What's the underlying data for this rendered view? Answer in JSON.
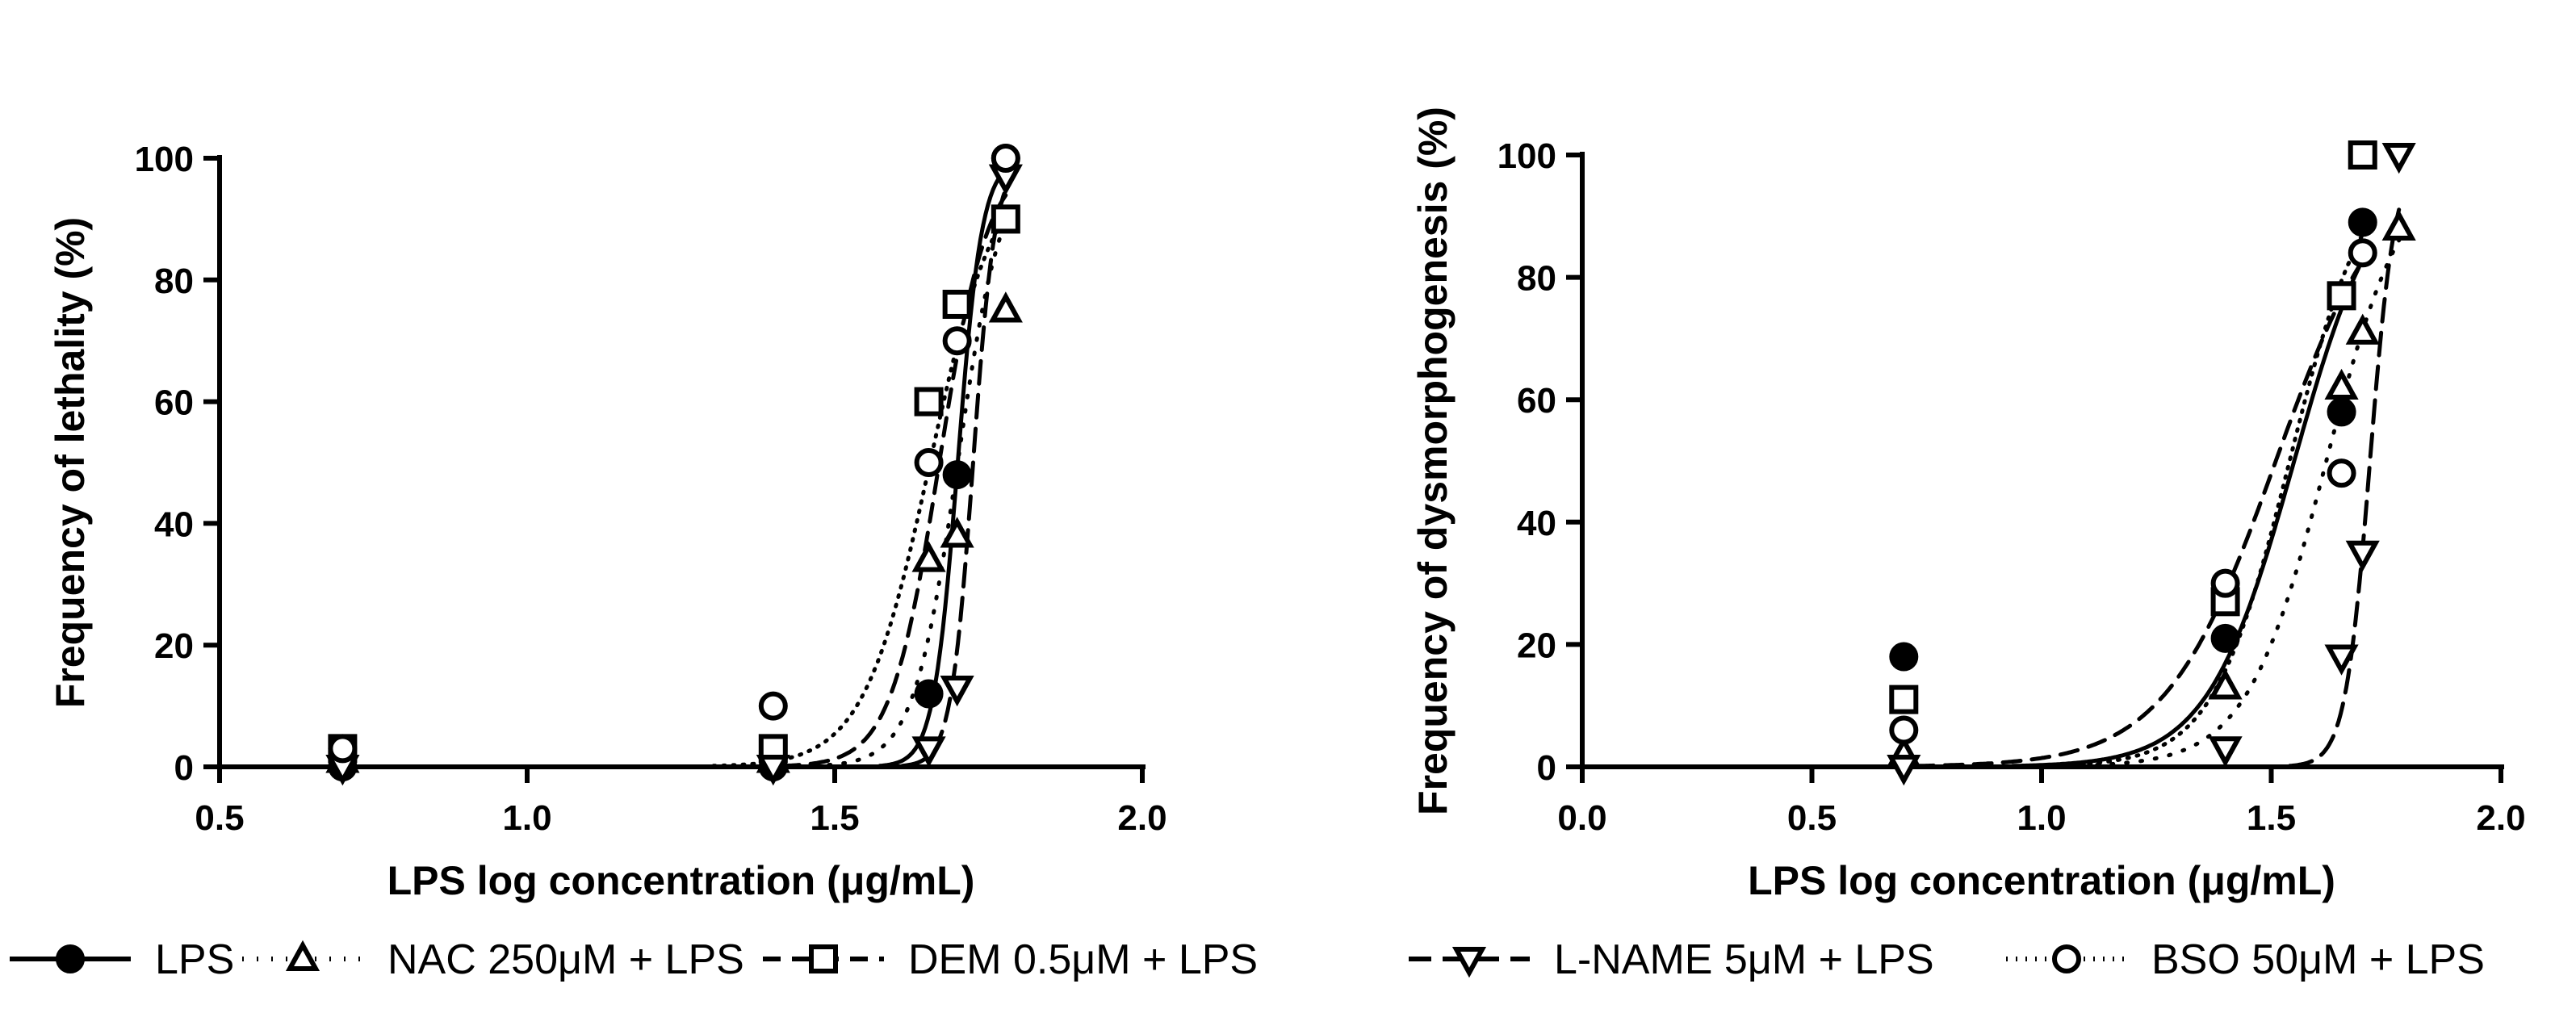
{
  "chart_data": [
    {
      "type": "scatter",
      "title": "",
      "xlabel": "LPS log concentration (μg/mL)",
      "ylabel": "Frequency of lethality (%)",
      "xlim": [
        0.5,
        2.0
      ],
      "ylim": [
        0,
        100
      ],
      "xticks": [
        "0.5",
        "1.0",
        "1.5",
        "2.0"
      ],
      "yticks": [
        "0",
        "20",
        "40",
        "60",
        "80",
        "100"
      ],
      "grid": false,
      "series": [
        {
          "name": "LPS",
          "marker": "filled-circle",
          "line": "solid",
          "x": [
            0.7,
            1.4,
            1.653,
            1.699,
            1.778
          ],
          "y": [
            0,
            0,
            12,
            48,
            100
          ],
          "fit": {
            "ec50": 1.7,
            "slope": 22
          }
        },
        {
          "name": "NAC 250μM + LPS",
          "marker": "triangle-up",
          "line": "dotted-sparse",
          "x": [
            0.7,
            1.4,
            1.653,
            1.699,
            1.778
          ],
          "y": [
            1,
            1,
            34,
            38,
            75
          ],
          "fit": {
            "ec50": 1.7,
            "slope": 12
          }
        },
        {
          "name": "DEM 0.5μM + LPS",
          "marker": "square",
          "line": "dashed",
          "x": [
            0.7,
            1.4,
            1.653,
            1.699,
            1.778
          ],
          "y": [
            3,
            3,
            60,
            76,
            90
          ],
          "fit": {
            "ec50": 1.67,
            "slope": 11
          }
        },
        {
          "name": "L-NAME 5μM + LPS",
          "marker": "triangle-down",
          "line": "dashed-long",
          "x": [
            0.7,
            1.4,
            1.653,
            1.699,
            1.778
          ],
          "y": [
            0,
            0,
            3,
            13,
            97
          ],
          "fit": {
            "ec50": 1.725,
            "slope": 24
          }
        },
        {
          "name": "BSO 50μM + LPS",
          "marker": "circle",
          "line": "dotted",
          "x": [
            0.7,
            1.4,
            1.653,
            1.699,
            1.778
          ],
          "y": [
            3,
            10,
            50,
            70,
            100
          ],
          "fit": {
            "ec50": 1.655,
            "slope": 8
          }
        }
      ]
    },
    {
      "type": "scatter",
      "title": "",
      "xlabel": "LPS log concentration (μg/mL)",
      "ylabel": "Frequency of dysmorphogenesis (%)",
      "xlim": [
        0.0,
        2.0
      ],
      "ylim": [
        0,
        100
      ],
      "xticks": [
        "0.0",
        "0.5",
        "1.0",
        "1.5",
        "2.0"
      ],
      "yticks": [
        "0",
        "20",
        "40",
        "60",
        "80",
        "100"
      ],
      "grid": false,
      "series": [
        {
          "name": "LPS",
          "marker": "filled-circle",
          "line": "solid",
          "x": [
            0.7,
            1.4,
            1.653,
            1.699
          ],
          "y": [
            18,
            21,
            58,
            89
          ],
          "fit": {
            "ec50": 1.55,
            "slope": 4.6
          }
        },
        {
          "name": "NAC 250μM + LPS",
          "marker": "triangle-up",
          "line": "dotted-sparse",
          "x": [
            0.7,
            1.4,
            1.653,
            1.699,
            1.778
          ],
          "y": [
            2,
            13,
            62,
            71,
            88
          ],
          "fit": {
            "ec50": 1.62,
            "slope": 5.0
          }
        },
        {
          "name": "DEM 0.5μM + LPS",
          "marker": "square",
          "line": "dashed",
          "x": [
            0.7,
            1.4,
            1.653,
            1.699
          ],
          "y": [
            11,
            27,
            77,
            100
          ],
          "fit": {
            "ec50": 1.51,
            "slope": 3.6
          }
        },
        {
          "name": "L-NAME 5μM + LPS",
          "marker": "triangle-down",
          "line": "dashed-long",
          "x": [
            0.7,
            1.4,
            1.653,
            1.699,
            1.778
          ],
          "y": [
            0,
            3,
            18,
            35,
            100
          ],
          "fit": {
            "ec50": 1.715,
            "slope": 16
          }
        },
        {
          "name": "BSO 50μM + LPS",
          "marker": "circle",
          "line": "dotted",
          "x": [
            0.7,
            1.4,
            1.653,
            1.699
          ],
          "y": [
            6,
            30,
            48,
            84
          ],
          "fit": {
            "ec50": 1.54,
            "slope": 5.2
          }
        }
      ]
    }
  ],
  "legend": [
    {
      "label": "LPS",
      "marker": "filled-circle",
      "line": "solid"
    },
    {
      "label": "NAC 250μM + LPS",
      "marker": "triangle-up",
      "line": "dotted-sparse"
    },
    {
      "label": "DEM 0.5μM + LPS",
      "marker": "square",
      "line": "dashed"
    },
    {
      "label": "L-NAME 5μM + LPS",
      "marker": "triangle-down",
      "line": "dashed-long"
    },
    {
      "label": "BSO 50μM + LPS",
      "marker": "circle",
      "line": "dotted"
    }
  ]
}
